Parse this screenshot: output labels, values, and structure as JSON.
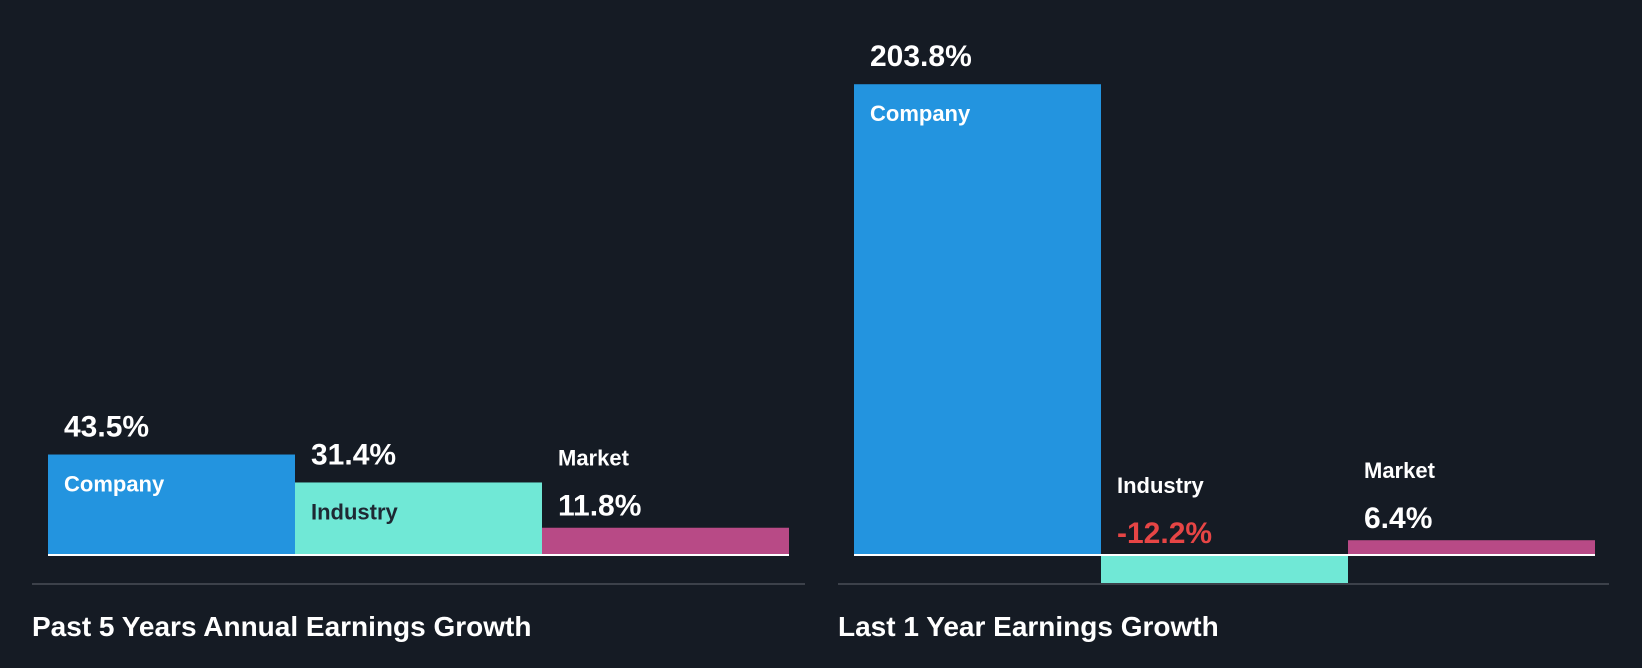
{
  "chart_data": [
    {
      "type": "bar",
      "title": "Past 5 Years Annual Earnings Growth",
      "categories": [
        "Company",
        "Industry",
        "Market"
      ],
      "values": [
        43.5,
        31.4,
        11.8
      ],
      "value_labels": [
        "43.5%",
        "31.4%",
        "11.8%"
      ],
      "unit": "%"
    },
    {
      "type": "bar",
      "title": "Last 1 Year Earnings Growth",
      "categories": [
        "Company",
        "Industry",
        "Market"
      ],
      "values": [
        203.8,
        -12.2,
        6.4
      ],
      "value_labels": [
        "203.8%",
        "-12.2%",
        "6.4%"
      ],
      "unit": "%"
    }
  ],
  "colors": {
    "background": "#151b24",
    "company": "#2394df",
    "industry": "#70e8d6",
    "market": "#b84a86",
    "negative_text": "#e64545",
    "text": "#ffffff",
    "dark_text": "#1e2833",
    "divider": "#3c414a"
  }
}
